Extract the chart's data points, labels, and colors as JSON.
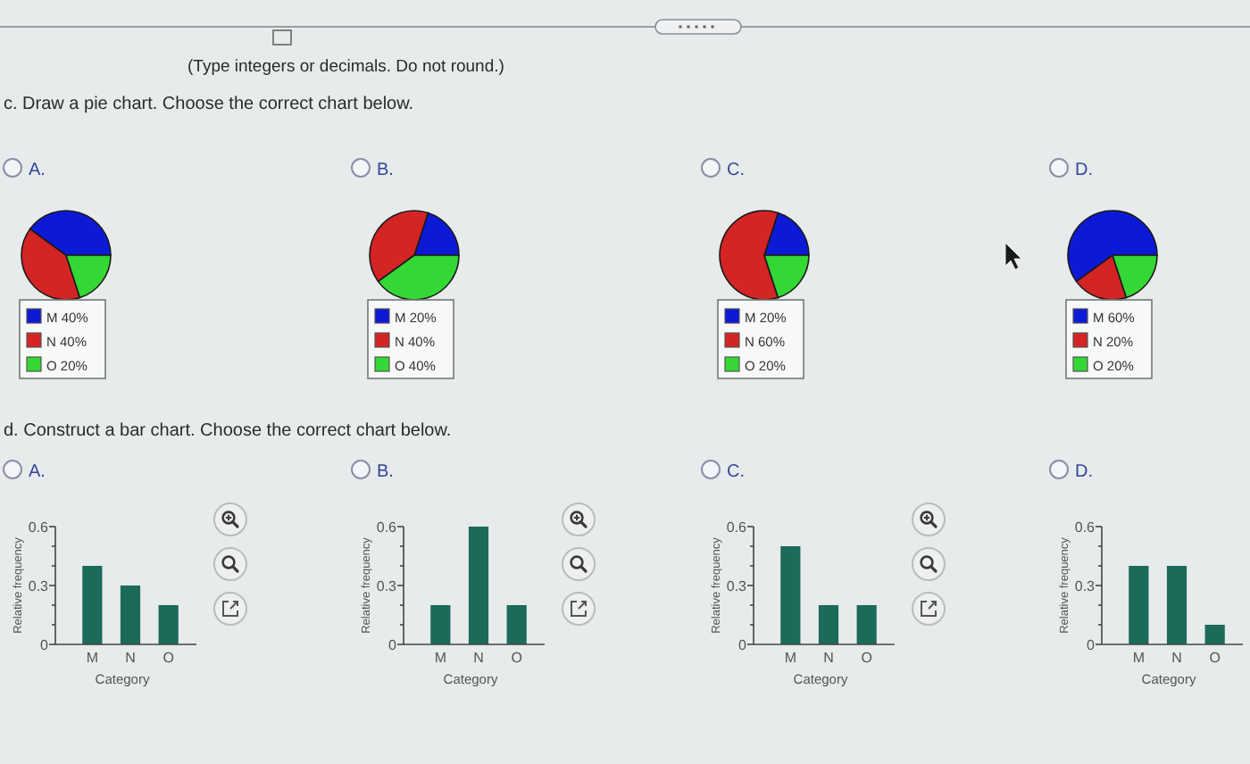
{
  "chart_data": [
    {
      "type": "pie",
      "title": "A.",
      "categories": [
        "M",
        "N",
        "O"
      ],
      "values": [
        40,
        40,
        20
      ],
      "colors": [
        "#0c1ad6",
        "#d42424",
        "#34d834"
      ],
      "value_labels": [
        "40%",
        "40%",
        "20%"
      ],
      "legend": "bottom",
      "annotations": [
        "(Type integers or decimals. Do not round.)",
        "c. Draw a pie chart. Choose the correct chart below."
      ]
    },
    {
      "type": "pie",
      "title": "B.",
      "categories": [
        "M",
        "N",
        "O"
      ],
      "values": [
        20,
        40,
        40
      ],
      "colors": [
        "#0c1ad6",
        "#d42424",
        "#34d834"
      ],
      "value_labels": [
        "20%",
        "40%",
        "40%"
      ],
      "legend": "bottom"
    },
    {
      "type": "pie",
      "title": "C.",
      "categories": [
        "M",
        "N",
        "O"
      ],
      "values": [
        20,
        60,
        20
      ],
      "colors": [
        "#0c1ad6",
        "#d42424",
        "#34d834"
      ],
      "value_labels": [
        "20%",
        "60%",
        "20%"
      ],
      "legend": "bottom"
    },
    {
      "type": "pie",
      "title": "D.",
      "categories": [
        "M",
        "N",
        "O"
      ],
      "values": [
        60,
        20,
        20
      ],
      "colors": [
        "#0c1ad6",
        "#d42424",
        "#34d834"
      ],
      "value_labels": [
        "60%",
        "20%",
        "20%"
      ],
      "legend": "bottom"
    },
    {
      "type": "bar",
      "title": "A.",
      "categories": [
        "M",
        "N",
        "O"
      ],
      "values": [
        0.4,
        0.3,
        0.2
      ],
      "color": "#1b6a5a",
      "xlabel": "Category",
      "ylabel": "Relative frequency",
      "ylim": [
        0,
        0.6
      ],
      "yticks": [
        0,
        {
          "value": 0.1,
          "label": null
        },
        {
          "value": 0.2,
          "label": null
        },
        0.3,
        {
          "value": 0.4,
          "label": null
        },
        {
          "value": 0.5,
          "label": null
        },
        0.6
      ],
      "annotations": [
        "d. Construct a bar chart. Choose the correct chart below."
      ]
    },
    {
      "type": "bar",
      "title": "B.",
      "categories": [
        "M",
        "N",
        "O"
      ],
      "values": [
        0.2,
        0.6,
        0.2
      ],
      "color": "#1b6a5a",
      "xlabel": "Category",
      "ylabel": "Relative frequency",
      "ylim": [
        0,
        0.6
      ],
      "yticks": [
        0,
        {
          "value": 0.1,
          "label": null
        },
        {
          "value": 0.2,
          "label": null
        },
        0.3,
        {
          "value": 0.4,
          "label": null
        },
        {
          "value": 0.5,
          "label": null
        },
        0.6
      ]
    },
    {
      "type": "bar",
      "title": "C.",
      "categories": [
        "M",
        "N",
        "O"
      ],
      "values": [
        0.5,
        0.2,
        0.2
      ],
      "color": "#1b6a5a",
      "xlabel": "Category",
      "ylabel": "Relative frequency",
      "ylim": [
        0,
        0.6
      ],
      "yticks": [
        0,
        {
          "value": 0.1,
          "label": null
        },
        {
          "value": 0.2,
          "label": null
        },
        0.3,
        {
          "value": 0.4,
          "label": null
        },
        {
          "value": 0.5,
          "label": null
        },
        0.6
      ]
    },
    {
      "type": "bar",
      "title": "D.",
      "categories": [
        "M",
        "N",
        "O"
      ],
      "values": [
        0.4,
        0.4,
        0.1
      ],
      "color": "#1b6a5a",
      "xlabel": "Category",
      "ylabel": "Relative frequency",
      "ylim": [
        0,
        0.6
      ],
      "yticks": [
        0,
        {
          "value": 0.1,
          "label": null
        },
        {
          "value": 0.2,
          "label": null
        },
        0.3,
        {
          "value": 0.4,
          "label": null
        },
        {
          "value": 0.5,
          "label": null
        },
        0.6
      ]
    }
  ]
}
